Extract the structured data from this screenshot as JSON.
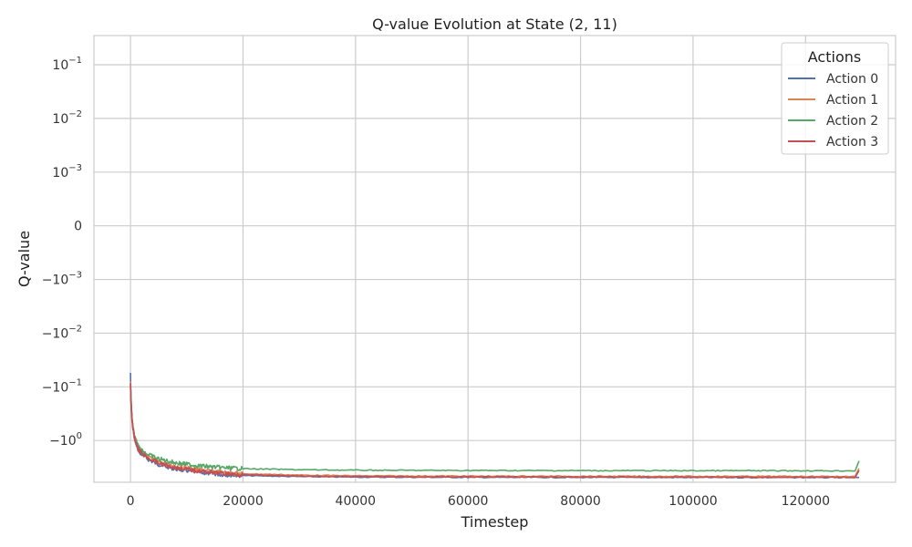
{
  "chart_data": {
    "type": "line",
    "title": "Q-value Evolution at State (2, 11)",
    "xlabel": "Timestep",
    "ylabel": "Q-value",
    "x_scale": "linear",
    "y_scale": "symlog",
    "y_linthresh": 0.001,
    "xlim": [
      -6500,
      136000
    ],
    "ylim": [
      -6.0,
      0.35
    ],
    "x_ticks": [
      {
        "value": 0,
        "label": "0"
      },
      {
        "value": 20000,
        "label": "20000"
      },
      {
        "value": 40000,
        "label": "40000"
      },
      {
        "value": 60000,
        "label": "60000"
      },
      {
        "value": 80000,
        "label": "80000"
      },
      {
        "value": 100000,
        "label": "100000"
      },
      {
        "value": 120000,
        "label": "120000"
      }
    ],
    "y_ticks": [
      {
        "value": 0.1,
        "base": "10",
        "exp": "−1",
        "sign": ""
      },
      {
        "value": 0.01,
        "base": "10",
        "exp": "−2",
        "sign": ""
      },
      {
        "value": 0.001,
        "base": "10",
        "exp": "−3",
        "sign": ""
      },
      {
        "value": 0,
        "base": "0",
        "exp": "",
        "sign": ""
      },
      {
        "value": -0.001,
        "base": "10",
        "exp": "−3",
        "sign": "−"
      },
      {
        "value": -0.01,
        "base": "10",
        "exp": "−2",
        "sign": "−"
      },
      {
        "value": -0.1,
        "base": "10",
        "exp": "−1",
        "sign": "−"
      },
      {
        "value": -1,
        "base": "10",
        "exp": "0",
        "sign": "−"
      }
    ],
    "grid": true,
    "legend": {
      "title": "Actions",
      "position": "top-right"
    },
    "series": [
      {
        "name": "Action 0",
        "color": "#4c72b0",
        "x": [
          0,
          300,
          700,
          1500,
          3000,
          5000,
          8000,
          12000,
          16000,
          20000,
          30000,
          40000,
          60000,
          80000,
          100000,
          120000,
          129000,
          129500
        ],
        "y": [
          -0.055,
          -0.4,
          -0.85,
          -1.6,
          -2.2,
          -2.8,
          -3.4,
          -3.9,
          -4.3,
          -4.5,
          -4.7,
          -4.8,
          -4.85,
          -4.87,
          -4.88,
          -4.89,
          -4.9,
          -4.9
        ]
      },
      {
        "name": "Action 1",
        "color": "#dd8452",
        "x": [
          0,
          300,
          700,
          1500,
          3000,
          5000,
          8000,
          12000,
          16000,
          20000,
          30000,
          40000,
          60000,
          80000,
          100000,
          120000,
          129000,
          129500
        ],
        "y": [
          -0.08,
          -0.45,
          -0.9,
          -1.5,
          -2.0,
          -2.5,
          -3.0,
          -3.5,
          -3.9,
          -4.15,
          -4.4,
          -4.55,
          -4.6,
          -4.63,
          -4.65,
          -4.66,
          -4.68,
          -3.3
        ]
      },
      {
        "name": "Action 2",
        "color": "#55a868",
        "x": [
          0,
          300,
          700,
          1500,
          3000,
          5000,
          8000,
          12000,
          16000,
          20000,
          30000,
          40000,
          60000,
          80000,
          100000,
          120000,
          129000,
          129500
        ],
        "y": [
          -0.09,
          -0.42,
          -0.82,
          -1.35,
          -1.8,
          -2.2,
          -2.6,
          -2.95,
          -3.2,
          -3.35,
          -3.5,
          -3.58,
          -3.62,
          -3.64,
          -3.65,
          -3.66,
          -3.67,
          -2.4
        ]
      },
      {
        "name": "Action 3",
        "color": "#c44e52",
        "x": [
          0,
          300,
          700,
          1500,
          3000,
          5000,
          8000,
          12000,
          16000,
          20000,
          30000,
          40000,
          60000,
          80000,
          100000,
          120000,
          129000,
          129500
        ],
        "y": [
          -0.085,
          -0.44,
          -0.88,
          -1.55,
          -2.1,
          -2.65,
          -3.2,
          -3.7,
          -4.1,
          -4.35,
          -4.6,
          -4.72,
          -4.78,
          -4.8,
          -4.82,
          -4.83,
          -4.85,
          -3.6
        ]
      }
    ]
  }
}
